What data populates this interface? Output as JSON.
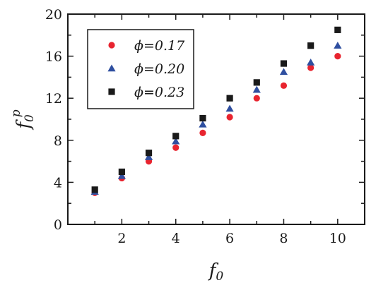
{
  "chart_data": {
    "type": "scatter",
    "title": "",
    "xlabel": "f",
    "xlabel_sub": "0",
    "ylabel": "f",
    "ylabel_sub": "0",
    "ylabel_sup": "p",
    "xlim": [
      0,
      11
    ],
    "ylim": [
      0,
      20
    ],
    "x_ticks": [
      2,
      4,
      6,
      8,
      10
    ],
    "y_ticks": [
      0,
      4,
      8,
      12,
      16,
      20
    ],
    "grid": false,
    "legend_position": "top-left",
    "series": [
      {
        "name": "ϕ=0.17",
        "marker": "circle",
        "color": "#e8242f",
        "x": [
          1,
          2,
          3,
          4,
          5,
          6,
          7,
          8,
          9,
          10
        ],
        "y": [
          3.0,
          4.4,
          6.0,
          7.3,
          8.7,
          10.2,
          12.0,
          13.2,
          14.9,
          16.0
        ]
      },
      {
        "name": "ϕ=0.20",
        "marker": "triangle",
        "color": "#2f4fa0",
        "x": [
          1,
          2,
          3,
          4,
          5,
          6,
          7,
          8,
          9,
          10
        ],
        "y": [
          3.1,
          4.6,
          6.4,
          7.9,
          9.5,
          11.0,
          12.8,
          14.5,
          15.4,
          17.0
        ]
      },
      {
        "name": "ϕ=0.23",
        "marker": "square",
        "color": "#1a1a1a",
        "x": [
          1,
          2,
          3,
          4,
          5,
          6,
          7,
          8,
          9,
          10
        ],
        "y": [
          3.3,
          5.0,
          6.8,
          8.4,
          10.1,
          12.0,
          13.5,
          15.3,
          17.0,
          18.5
        ]
      }
    ]
  }
}
